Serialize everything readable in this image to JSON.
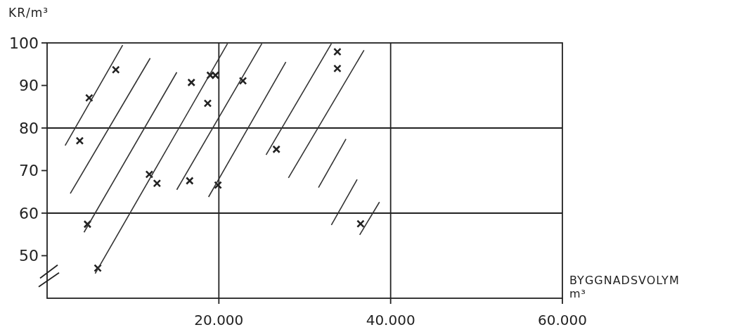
{
  "chart_data": {
    "type": "scatter",
    "xlabel": "BYGGNADSVOLYM m³",
    "ylabel": "KR/m³",
    "xlim": [
      0,
      60000
    ],
    "ylim": [
      40,
      100
    ],
    "xticks": [
      {
        "value": 20000,
        "label": "20.000"
      },
      {
        "value": 40000,
        "label": "40.000"
      },
      {
        "value": 60000,
        "label": "60.000"
      }
    ],
    "yticks": [
      50,
      60,
      70,
      80,
      90,
      100
    ],
    "ref_lines": [
      {
        "axis": "y",
        "value": 60,
        "color": "#222222"
      },
      {
        "axis": "y",
        "value": 80,
        "color": "#222222"
      },
      {
        "axis": "x",
        "value": 20000,
        "color": "#222222"
      },
      {
        "axis": "x",
        "value": 40000,
        "color": "#222222"
      }
    ],
    "marker": "cross",
    "series": [
      {
        "color": "#222222",
        "x": [
          3800,
          4900,
          8000,
          4700,
          5900,
          11900,
          12800,
          16600,
          16800,
          19900,
          18700,
          19000,
          19600,
          22800,
          26700,
          33800,
          33800,
          36500
        ],
        "values": [
          77,
          87.1,
          93.7,
          57.4,
          47.1,
          69.1,
          67,
          67.6,
          90.7,
          66.6,
          85.8,
          92.4,
          92.4,
          91.1,
          75,
          97.9,
          94,
          57.5
        ]
      },
      {
        "type": "line",
        "marker": "none",
        "color": "#333333",
        "x": [
          2100,
          8800
        ],
        "values": [
          75.9,
          99.5
        ]
      },
      {
        "type": "line",
        "marker": "none",
        "color": "#333333",
        "x": [
          2700,
          12000
        ],
        "values": [
          64.6,
          96.4
        ]
      },
      {
        "type": "line",
        "marker": "none",
        "color": "#333333",
        "x": [
          4300,
          15100
        ],
        "values": [
          55.5,
          93.1
        ]
      },
      {
        "type": "line",
        "marker": "none",
        "color": "#333333",
        "x": [
          5600,
          21000
        ],
        "values": [
          45.8,
          99.8
        ]
      },
      {
        "type": "line",
        "marker": "none",
        "color": "#333333",
        "x": [
          15100,
          25000
        ],
        "values": [
          65.5,
          99.8
        ]
      },
      {
        "type": "line",
        "marker": "none",
        "color": "#333333",
        "x": [
          18800,
          27800
        ],
        "values": [
          63.8,
          95.5
        ]
      },
      {
        "type": "line",
        "marker": "none",
        "color": "#333333",
        "x": [
          25500,
          33100
        ],
        "values": [
          73.7,
          99.8
        ]
      },
      {
        "type": "line",
        "marker": "none",
        "color": "#333333",
        "x": [
          28100,
          36900
        ],
        "values": [
          68.3,
          98.3
        ]
      },
      {
        "type": "line",
        "marker": "none",
        "color": "#333333",
        "x": [
          31600,
          34800
        ],
        "values": [
          66,
          77.4
        ]
      },
      {
        "type": "line",
        "marker": "none",
        "color": "#333333",
        "x": [
          33100,
          36100
        ],
        "values": [
          57.2,
          67.9
        ]
      },
      {
        "type": "line",
        "marker": "none",
        "color": "#333333",
        "x": [
          36400,
          38700
        ],
        "values": [
          54.9,
          62.6
        ]
      }
    ]
  }
}
